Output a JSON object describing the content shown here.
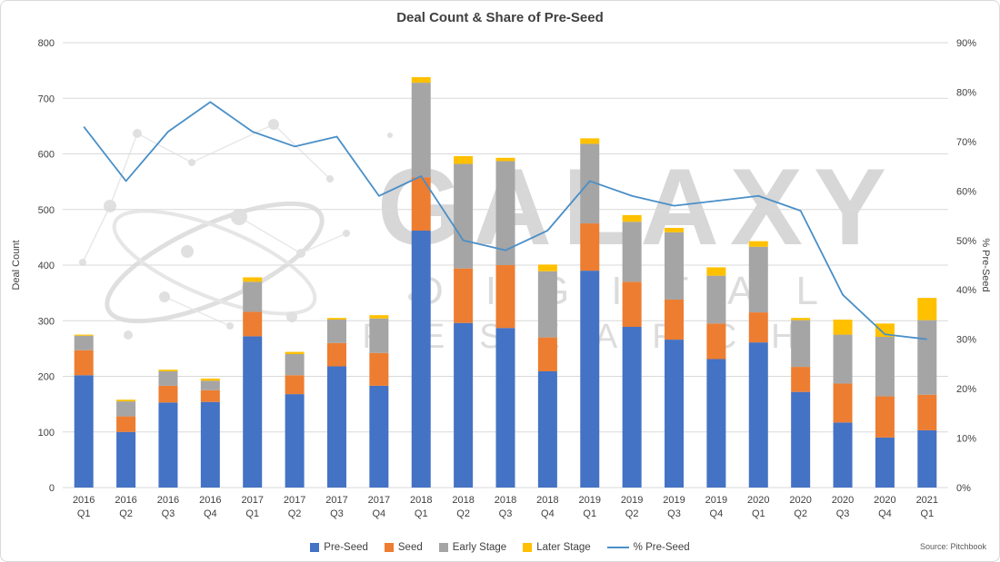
{
  "title": "Deal Count & Share of Pre-Seed",
  "source_label": "Source: Pitchbook",
  "watermark": {
    "line1": "GALAXY",
    "line2": "DIGITAL",
    "line3": "RESEARCH"
  },
  "colors": {
    "pre_seed": "#4472C4",
    "seed": "#ED7D31",
    "early_stage": "#A5A5A5",
    "later_stage": "#FFC000",
    "pct_line": "#4A8FC7",
    "gridline": "#D9D9D9",
    "text": "#404040"
  },
  "chart_data": {
    "type": "bar",
    "subtype": "stacked-bars-with-percent-line",
    "title": "Deal Count & Share of Pre-Seed",
    "categories": [
      "2016 Q1",
      "2016 Q2",
      "2016 Q3",
      "2016 Q4",
      "2017 Q1",
      "2017 Q2",
      "2017 Q3",
      "2017 Q4",
      "2018 Q1",
      "2018 Q2",
      "2018 Q3",
      "2018 Q4",
      "2019 Q1",
      "2019 Q2",
      "2019 Q3",
      "2019 Q4",
      "2020 Q1",
      "2020 Q2",
      "2020 Q3",
      "2020 Q4",
      "2021 Q1"
    ],
    "series": [
      {
        "name": "Pre-Seed",
        "type": "bar",
        "axis": "left",
        "color": "#4472C4",
        "values": [
          202,
          100,
          153,
          154,
          272,
          168,
          218,
          183,
          462,
          296,
          287,
          209,
          390,
          289,
          266,
          231,
          261,
          172,
          117,
          90,
          103
        ]
      },
      {
        "name": "Seed",
        "type": "bar",
        "axis": "left",
        "color": "#ED7D31",
        "values": [
          45,
          28,
          30,
          21,
          44,
          34,
          42,
          59,
          96,
          98,
          113,
          61,
          85,
          81,
          72,
          64,
          54,
          45,
          70,
          74,
          64
        ]
      },
      {
        "name": "Early Stage",
        "type": "bar",
        "axis": "left",
        "color": "#A5A5A5",
        "values": [
          26,
          27,
          26,
          17,
          54,
          38,
          42,
          62,
          170,
          188,
          187,
          119,
          143,
          108,
          121,
          86,
          118,
          84,
          88,
          107,
          134
        ]
      },
      {
        "name": "Later Stage",
        "type": "bar",
        "axis": "left",
        "color": "#FFC000",
        "values": [
          2,
          3,
          3,
          4,
          8,
          4,
          3,
          6,
          10,
          14,
          6,
          12,
          10,
          12,
          8,
          15,
          10,
          4,
          27,
          24,
          40
        ]
      },
      {
        "name": "% Pre-Seed",
        "type": "line",
        "axis": "right",
        "color": "#4A8FC7",
        "values": [
          73,
          62,
          72,
          78,
          72,
          69,
          71,
          59,
          63,
          50,
          48,
          52,
          62,
          59,
          57,
          58,
          59,
          56,
          39,
          31,
          30
        ]
      }
    ],
    "axes": {
      "left": {
        "label": "Deal Count",
        "min": 0,
        "max": 800,
        "step": 100
      },
      "right": {
        "label": "% Pre-Seed",
        "min": 0,
        "max": 90,
        "step": 10,
        "format": "percent"
      }
    },
    "grid": true,
    "legend_position": "bottom"
  }
}
